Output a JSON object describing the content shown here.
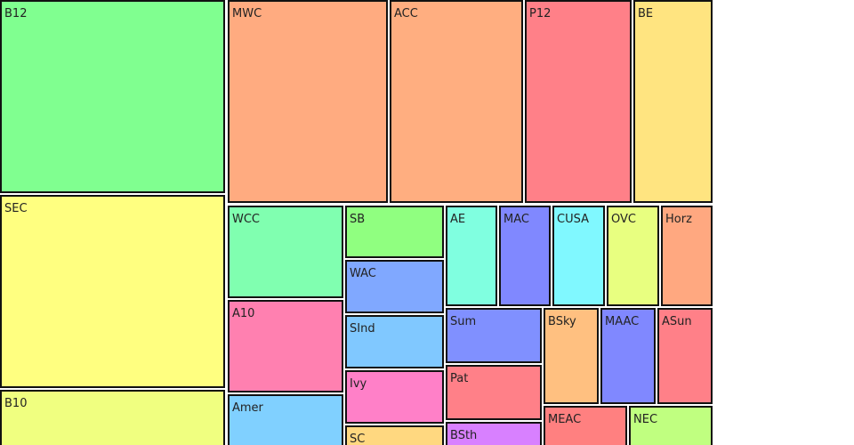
{
  "chart_data": {
    "type": "treemap",
    "title": "",
    "cells": [
      {
        "label": "B12",
        "color": "#80ff90"
      },
      {
        "label": "SEC",
        "color": "#ffff80"
      },
      {
        "label": "B10",
        "color": "#f0ff80"
      },
      {
        "label": "MWC",
        "color": "#ffab80"
      },
      {
        "label": "ACC",
        "color": "#ffae80"
      },
      {
        "label": "P12",
        "color": "#ff8088"
      },
      {
        "label": "BE",
        "color": "#ffe480"
      },
      {
        "label": "WCC",
        "color": "#80ffb0"
      },
      {
        "label": "A10",
        "color": "#ff80b0"
      },
      {
        "label": "Amer",
        "color": "#80d0ff"
      },
      {
        "label": "SB",
        "color": "#90ff80"
      },
      {
        "label": "WAC",
        "color": "#80a8ff"
      },
      {
        "label": "SInd",
        "color": "#80c8ff"
      },
      {
        "label": "Ivy",
        "color": "#ff80c8"
      },
      {
        "label": "SC",
        "color": "#ffd880"
      },
      {
        "label": "AE",
        "color": "#80ffe0"
      },
      {
        "label": "MAC",
        "color": "#8088ff"
      },
      {
        "label": "CUSA",
        "color": "#80f8ff"
      },
      {
        "label": "OVC",
        "color": "#e8ff80"
      },
      {
        "label": "Horz",
        "color": "#ffa880"
      },
      {
        "label": "Sum",
        "color": "#8090ff"
      },
      {
        "label": "Pat",
        "color": "#ff8088"
      },
      {
        "label": "BSth",
        "color": "#d880ff"
      },
      {
        "label": "BSky",
        "color": "#ffc080"
      },
      {
        "label": "MAAC",
        "color": "#8088ff"
      },
      {
        "label": "ASun",
        "color": "#ff8088"
      },
      {
        "label": "MEAC",
        "color": "#ff8080"
      },
      {
        "label": "NEC",
        "color": "#c0ff80"
      }
    ]
  }
}
